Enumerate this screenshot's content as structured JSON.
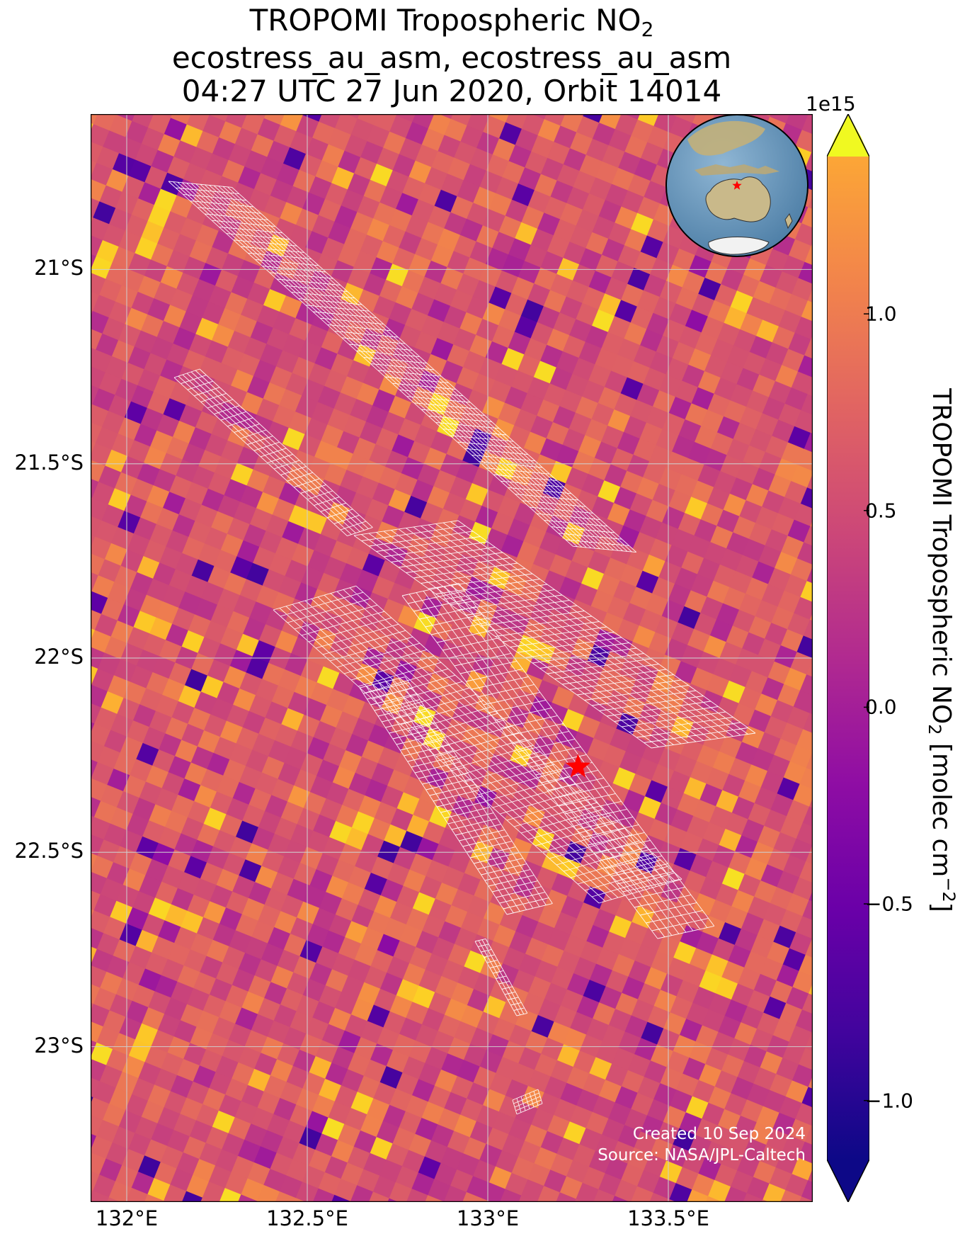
{
  "title": {
    "line1_prefix": "TROPOMI Tropospheric NO",
    "line1_sub": "2",
    "line2": "ecostress_au_asm, ecostress_au_asm",
    "line3": "04:27 UTC 27 Jun 2020, Orbit 14014"
  },
  "map": {
    "lon_range": [
      131.9,
      133.9
    ],
    "lat_range": [
      -23.4,
      -20.6
    ],
    "lon_ticks": [
      {
        "value": 132.0,
        "label": "132°E"
      },
      {
        "value": 132.5,
        "label": "132.5°E"
      },
      {
        "value": 133.0,
        "label": "133°E"
      },
      {
        "value": 133.5,
        "label": "133.5°E"
      }
    ],
    "lat_ticks": [
      {
        "value": -21.0,
        "label": "21°S"
      },
      {
        "value": -21.5,
        "label": "21.5°S"
      },
      {
        "value": -22.0,
        "label": "22°S"
      },
      {
        "value": -22.5,
        "label": "22.5°S"
      },
      {
        "value": -23.0,
        "label": "23°S"
      }
    ],
    "site_marker": {
      "lon": 133.25,
      "lat": -22.28,
      "color": "#ff0000",
      "icon": "red-star-icon"
    },
    "swath_outline_color": "#ffffff"
  },
  "colorbar": {
    "exponent_label": "1e15",
    "vmin": -1.15,
    "vmax": 1.4,
    "colormap": "plasma",
    "extend": "both",
    "ticks": [
      {
        "value": -1.0,
        "label": "−1.0"
      },
      {
        "value": -0.5,
        "label": "−0.5"
      },
      {
        "value": 0.0,
        "label": "0.0"
      },
      {
        "value": 0.5,
        "label": "0.5"
      },
      {
        "value": 1.0,
        "label": "1.0"
      }
    ],
    "label_prefix": "TROPOMI Tropospheric NO",
    "label_sub": "2",
    "label_suffix": " [molec cm",
    "label_sup": "−2",
    "label_end": "]"
  },
  "credits": {
    "created": "Created 10 Sep 2024",
    "source": "Source: NASA/JPL-Caltech"
  },
  "inset_globe": {
    "ocean_color": "#6a98bd",
    "land_color": "#c9b98a",
    "marker_color": "#ff0000"
  }
}
